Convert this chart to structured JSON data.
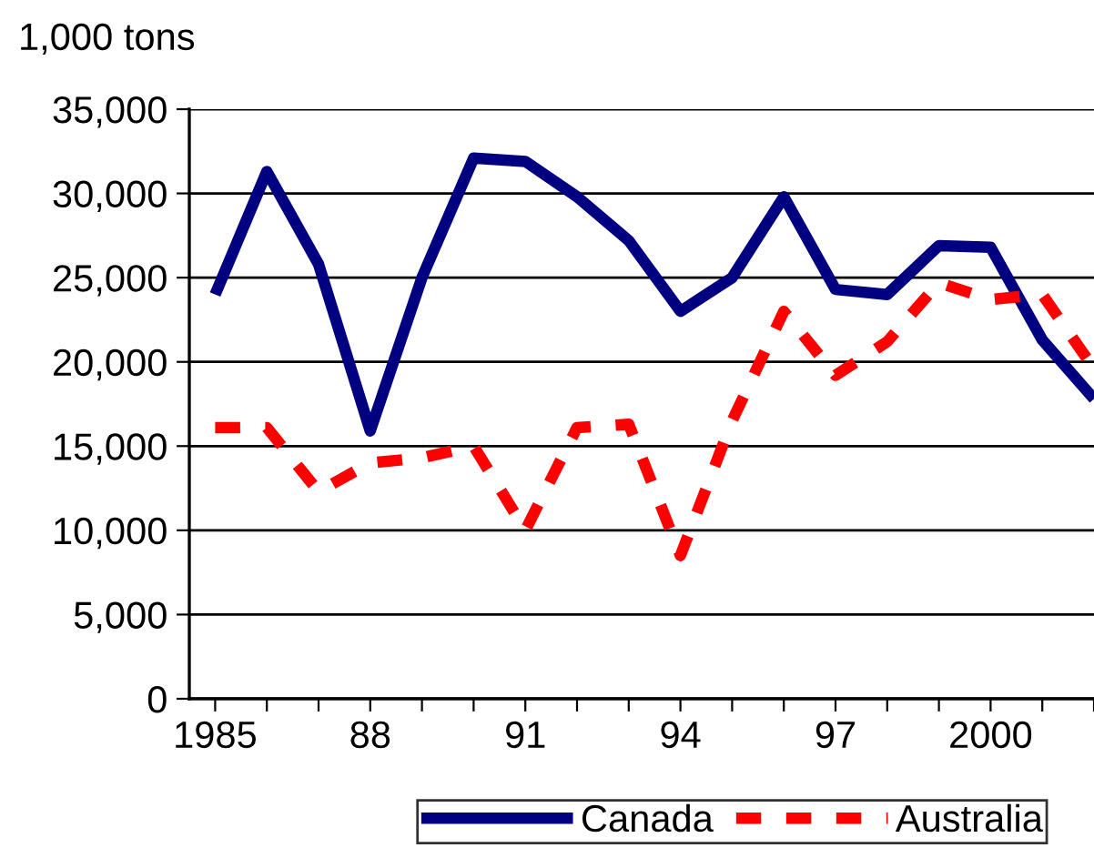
{
  "chart_data": {
    "type": "line",
    "ylabel": "1,000 tons",
    "x": [
      1985,
      1986,
      1987,
      1988,
      1989,
      1990,
      1991,
      1992,
      1993,
      1994,
      1995,
      1996,
      1997,
      1998,
      1999,
      2000,
      2001,
      2002
    ],
    "series": [
      {
        "name": "Canada",
        "color": "#000080",
        "line_style": "solid",
        "values": [
          24000,
          31300,
          25800,
          15900,
          25000,
          32100,
          31900,
          29800,
          27200,
          23000,
          25000,
          29800,
          24300,
          24000,
          26900,
          26800,
          21300,
          17800
        ]
      },
      {
        "name": "Australia",
        "color": "#ff0000",
        "line_style": "dashed",
        "values": [
          16100,
          16100,
          12300,
          14000,
          14300,
          15000,
          10000,
          16100,
          16300,
          8500,
          16500,
          23000,
          19200,
          21200,
          24700,
          23700,
          24000,
          19600
        ]
      }
    ],
    "xlim": [
      1984.5,
      2002
    ],
    "xticks": [
      {
        "value": 1985,
        "label": "1985"
      },
      {
        "value": 1986,
        "label": null
      },
      {
        "value": 1987,
        "label": null
      },
      {
        "value": 1988,
        "label": "88"
      },
      {
        "value": 1989,
        "label": null
      },
      {
        "value": 1990,
        "label": null
      },
      {
        "value": 1991,
        "label": "91"
      },
      {
        "value": 1992,
        "label": null
      },
      {
        "value": 1993,
        "label": null
      },
      {
        "value": 1994,
        "label": "94"
      },
      {
        "value": 1995,
        "label": null
      },
      {
        "value": 1996,
        "label": null
      },
      {
        "value": 1997,
        "label": "97"
      },
      {
        "value": 1998,
        "label": null
      },
      {
        "value": 1999,
        "label": null
      },
      {
        "value": 2000,
        "label": "2000"
      },
      {
        "value": 2001,
        "label": null
      },
      {
        "value": 2002,
        "label": null
      }
    ],
    "ylim": [
      0,
      35000
    ],
    "yticks": [
      {
        "value": 0,
        "label": "0"
      },
      {
        "value": 5000,
        "label": "5,000"
      },
      {
        "value": 10000,
        "label": "10,000"
      },
      {
        "value": 15000,
        "label": "15,000"
      },
      {
        "value": 20000,
        "label": "20,000"
      },
      {
        "value": 25000,
        "label": "25,000"
      },
      {
        "value": 30000,
        "label": "30,000"
      },
      {
        "value": 35000,
        "label": "35,000"
      }
    ],
    "grid": "y",
    "legend": "bottom",
    "marker": "none"
  }
}
